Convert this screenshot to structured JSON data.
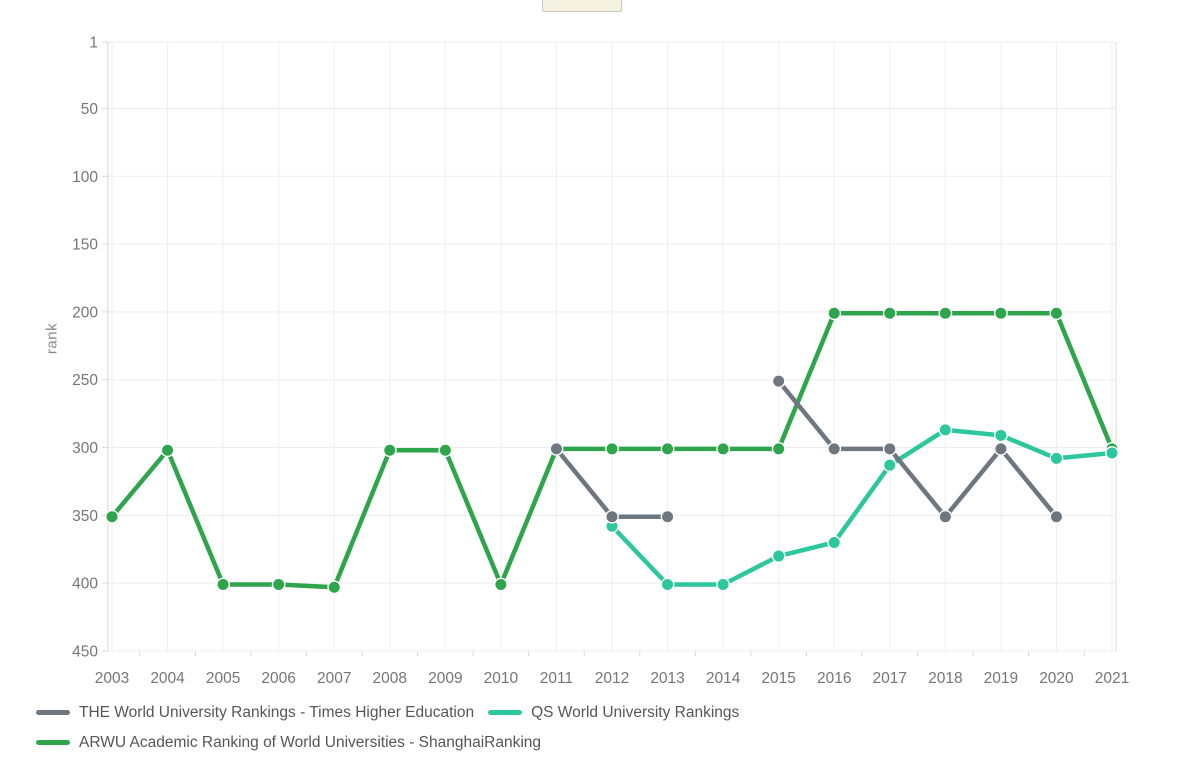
{
  "toolbar": {
    "export_button_label": "",
    "export_button_color": "#f6f2e2"
  },
  "chart_data": {
    "type": "line",
    "title": "",
    "xlabel": "",
    "ylabel": "rank",
    "x_categories": [
      "2003",
      "2004",
      "2005",
      "2006",
      "2007",
      "2008",
      "2009",
      "2010",
      "2011",
      "2012",
      "2013",
      "2014",
      "2015",
      "2016",
      "2017",
      "2018",
      "2019",
      "2020",
      "2021"
    ],
    "yticks": [
      1,
      50,
      100,
      150,
      200,
      250,
      300,
      350,
      400,
      450
    ],
    "ylim": [
      1,
      450
    ],
    "y_axis_inverted": true,
    "grid": true,
    "legend_position": "bottom-left two rows",
    "series": [
      {
        "name": "THE World University Rankings - Times Higher Education",
        "color": "#6e7680",
        "values": [
          null,
          null,
          null,
          null,
          null,
          null,
          null,
          null,
          301,
          351,
          351,
          null,
          251,
          301,
          301,
          351,
          301,
          351,
          null
        ]
      },
      {
        "name": "QS World University Rankings",
        "color": "#2cc79c",
        "values": [
          null,
          null,
          null,
          null,
          null,
          null,
          null,
          null,
          null,
          358,
          401,
          401,
          380,
          370,
          313,
          287,
          291,
          308,
          304
        ]
      },
      {
        "name": "ARWU Academic Ranking of World Universities - ShanghaiRanking",
        "color": "#2ea44b",
        "values": [
          351,
          302,
          401,
          401,
          403,
          302,
          302,
          401,
          301,
          301,
          301,
          301,
          301,
          201,
          201,
          201,
          201,
          201,
          301
        ]
      }
    ]
  }
}
